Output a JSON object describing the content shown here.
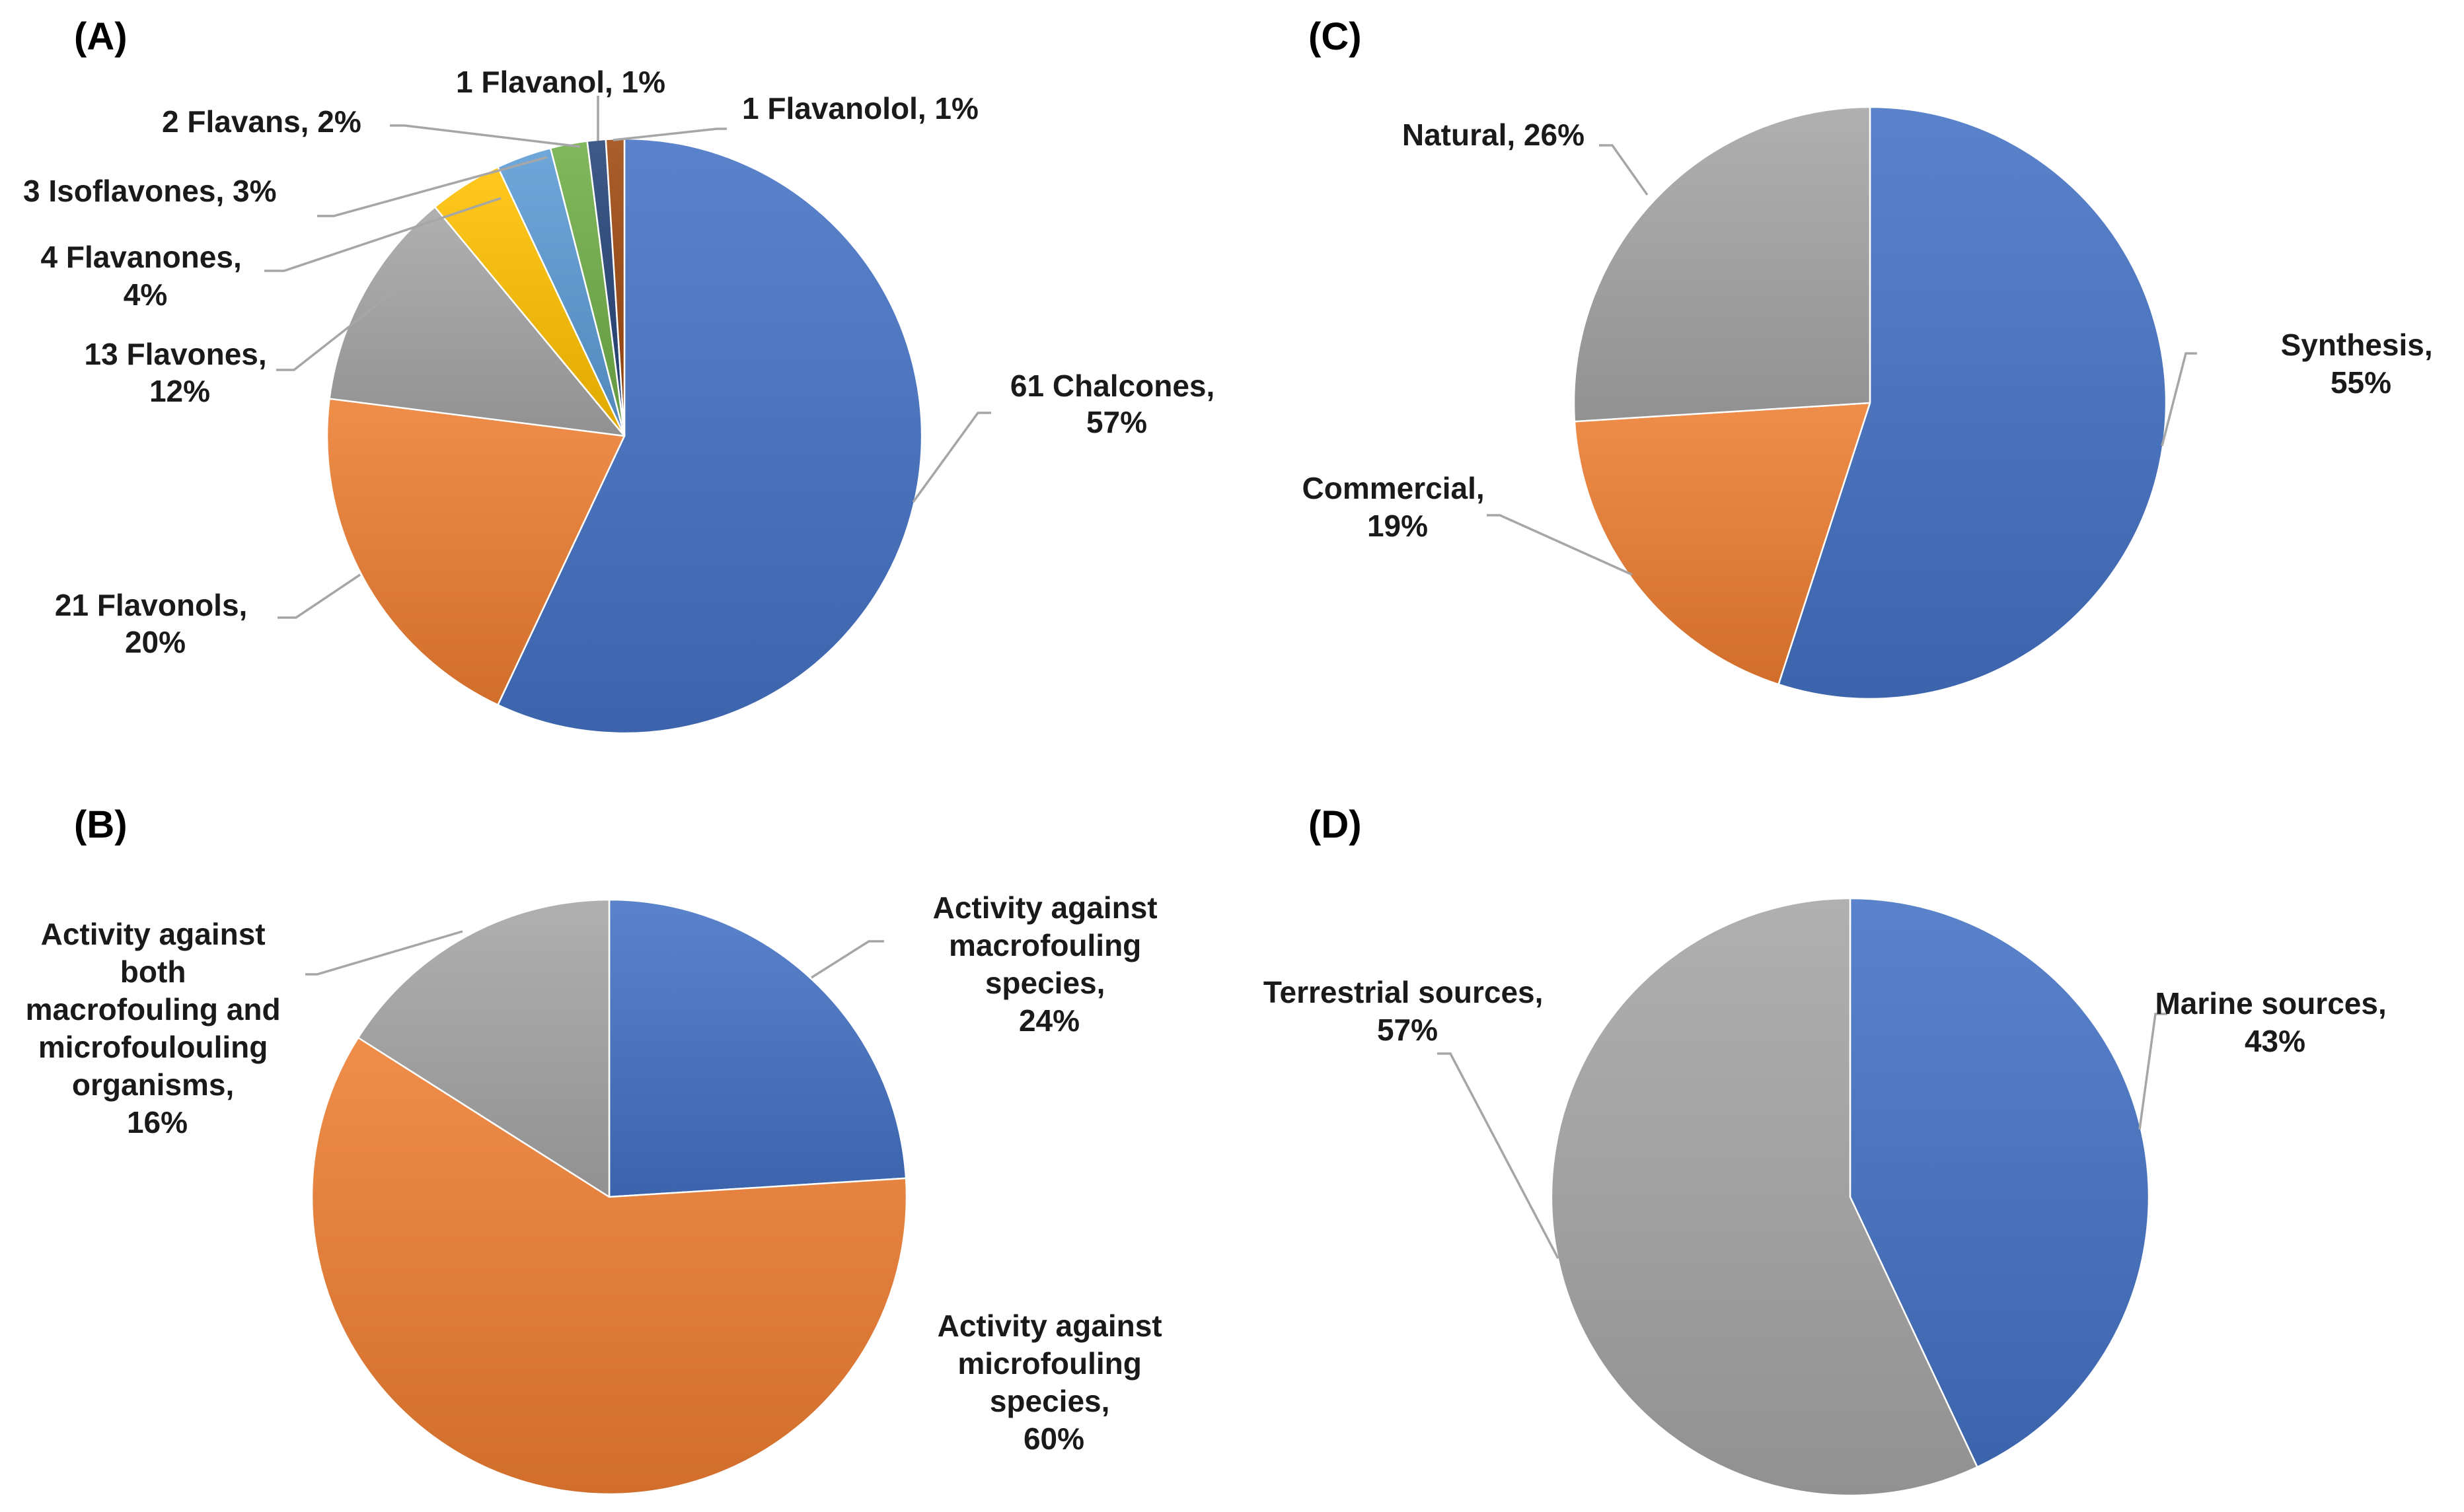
{
  "chart_data": [
    {
      "panel": "(A)",
      "type": "pie",
      "title": "",
      "slices": [
        {
          "name": "Chalcones",
          "count": 61,
          "value": 57,
          "label": [
            "61 Chalcones,",
            "57%"
          ],
          "color": "#4472c4"
        },
        {
          "name": "Flavonols",
          "count": 21,
          "value": 20,
          "label": [
            "21 Flavonols,",
            "20%"
          ],
          "color": "#ed7d31"
        },
        {
          "name": "Flavones",
          "count": 13,
          "value": 12,
          "label": [
            "13 Flavones,",
            "12%"
          ],
          "color": "#a5a5a5"
        },
        {
          "name": "Flavanones",
          "count": 4,
          "value": 4,
          "label": [
            "4 Flavanones,",
            "4%"
          ],
          "color": "#ffc000"
        },
        {
          "name": "Isoflavones",
          "count": 3,
          "value": 3,
          "label": [
            "3 Isoflavones, 3%"
          ],
          "color": "#5b9bd5"
        },
        {
          "name": "Flavans",
          "count": 2,
          "value": 2,
          "label": [
            "2 Flavans, 2%"
          ],
          "color": "#70ad47"
        },
        {
          "name": "Flavanol",
          "count": 1,
          "value": 1,
          "label": [
            "1 Flavanol, 1%"
          ],
          "color": "#264478"
        },
        {
          "name": "Flavanolol",
          "count": 1,
          "value": 1,
          "label": [
            "1 Flavanolol, 1%"
          ],
          "color": "#9e480e"
        }
      ]
    },
    {
      "panel": "(B)",
      "type": "pie",
      "title": "",
      "slices": [
        {
          "name": "Activity against macrofouling species",
          "value": 24,
          "label": [
            "Activity against",
            "macrofouling",
            "species,",
            "24%"
          ],
          "color": "#4472c4"
        },
        {
          "name": "Activity against microfouling species",
          "value": 60,
          "label": [
            "Activity against",
            "microfouling",
            "species,",
            "60%"
          ],
          "color": "#ed7d31"
        },
        {
          "name": "Activity against both macrofouling and microfoulouling organisms",
          "value": 16,
          "label": [
            "Activity against",
            "both",
            "macrofouling and",
            "microfoulouling",
            "organisms,",
            "16%"
          ],
          "color": "#a5a5a5"
        }
      ]
    },
    {
      "panel": "(C)",
      "type": "pie",
      "title": "",
      "slices": [
        {
          "name": "Synthesis",
          "value": 55,
          "label": [
            "Synthesis,",
            "55%"
          ],
          "color": "#4472c4"
        },
        {
          "name": "Commercial",
          "value": 19,
          "label": [
            "Commercial,",
            "19%"
          ],
          "color": "#ed7d31"
        },
        {
          "name": "Natural",
          "value": 26,
          "label": [
            "Natural, 26%"
          ],
          "color": "#a5a5a5"
        }
      ]
    },
    {
      "panel": "(D)",
      "type": "pie",
      "title": "",
      "slices": [
        {
          "name": "Marine sources",
          "value": 43,
          "label": [
            "Marine sources,",
            "43%"
          ],
          "color": "#4472c4"
        },
        {
          "name": "Terrestrial sources",
          "value": 57,
          "label": [
            "Terrestrial sources,",
            "57%"
          ],
          "color": "#a5a5a5"
        }
      ]
    }
  ]
}
